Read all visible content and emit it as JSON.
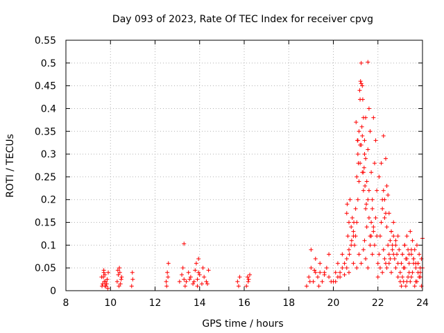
{
  "chart_data": {
    "type": "scatter",
    "title": "Day 093 of 2023, Rate Of TEC Index for receiver cpvg",
    "xlabel": "GPS time / hours",
    "ylabel": "ROTI / TECUs",
    "xlim": [
      8,
      24
    ],
    "ylim": [
      0,
      0.55
    ],
    "xticks": [
      "8",
      "10",
      "12",
      "14",
      "16",
      "18",
      "20",
      "22",
      "24"
    ],
    "yticks": [
      "0",
      "0.05",
      "0.1",
      "0.15",
      "0.2",
      "0.25",
      "0.3",
      "0.35",
      "0.4",
      "0.45",
      "0.5",
      "0.55"
    ],
    "grid": true,
    "marker": "+",
    "color": "#ff0000",
    "series": [
      {
        "x": [
          9.6,
          9.65,
          9.7,
          9.72,
          9.75,
          9.8,
          9.85,
          9.9,
          9.62,
          9.68,
          9.78,
          9.83,
          9.88,
          9.7,
          9.75,
          10.3,
          10.35,
          10.4,
          10.45,
          10.5,
          10.38,
          10.42,
          10.33,
          10.48,
          10.95,
          11.0,
          10.98,
          12.5,
          12.55,
          12.6,
          12.52,
          12.58,
          13.1,
          13.2,
          13.25,
          13.3,
          13.4,
          13.5,
          13.6,
          13.7,
          13.8,
          13.9,
          14.0,
          14.1,
          14.2,
          14.3,
          14.4,
          13.35,
          13.55,
          13.75,
          13.95,
          14.15,
          14.35,
          13.3,
          13.9,
          13.85,
          13.95,
          15.7,
          15.75,
          15.8,
          16.1,
          16.15,
          16.2,
          16.25,
          16.18,
          18.8,
          18.9,
          19.0,
          19.1,
          19.2,
          19.3,
          19.4,
          19.5,
          19.6,
          19.7,
          19.8,
          19.9,
          19.0,
          19.2,
          19.4,
          19.6,
          19.8,
          18.95,
          19.15,
          19.35,
          20.0,
          20.1,
          20.2,
          20.3,
          20.4,
          20.5,
          20.6,
          20.7,
          20.8,
          20.9,
          20.1,
          20.3,
          20.5,
          20.7,
          20.9,
          20.2,
          20.6,
          20.4,
          20.6,
          20.65,
          20.7,
          20.75,
          20.8,
          20.85,
          20.9,
          20.95,
          20.62,
          20.72,
          20.82,
          20.92,
          21.0,
          21.05,
          21.1,
          21.15,
          21.2,
          21.25,
          21.3,
          21.35,
          21.4,
          21.45,
          21.5,
          21.55,
          21.6,
          21.65,
          21.7,
          21.75,
          21.8,
          21.85,
          21.9,
          21.95,
          21.0,
          21.05,
          21.1,
          21.15,
          21.2,
          21.25,
          21.3,
          21.35,
          21.4,
          21.45,
          21.5,
          21.55,
          21.6,
          21.65,
          21.7,
          21.75,
          21.8,
          21.85,
          21.9,
          21.95,
          21.02,
          21.08,
          21.12,
          21.18,
          21.22,
          21.28,
          21.32,
          21.38,
          21.42,
          21.48,
          21.05,
          21.15,
          21.25,
          21.35,
          21.45,
          21.55,
          21.65,
          21.75,
          21.25,
          21.3,
          21.55,
          21.2,
          21.35,
          21.6,
          21.7,
          21.8,
          21.4,
          21.1,
          21.45,
          22.0,
          22.05,
          22.1,
          22.15,
          22.2,
          22.25,
          22.3,
          22.35,
          22.4,
          22.45,
          22.5,
          22.55,
          22.6,
          22.65,
          22.7,
          22.75,
          22.8,
          22.85,
          22.9,
          22.95,
          22.0,
          22.1,
          22.2,
          22.3,
          22.4,
          22.5,
          22.6,
          22.7,
          22.8,
          22.9,
          22.05,
          22.15,
          22.25,
          22.35,
          22.45,
          22.2,
          22.3,
          22.4,
          22.5,
          22.6,
          22.7,
          22.8,
          22.9,
          22.25,
          22.35,
          22.55,
          22.65,
          23.0,
          23.05,
          23.1,
          23.15,
          23.2,
          23.25,
          23.3,
          23.35,
          23.4,
          23.45,
          23.5,
          23.55,
          23.6,
          23.65,
          23.7,
          23.75,
          23.8,
          23.85,
          23.9,
          23.95,
          24.0,
          23.0,
          23.1,
          23.2,
          23.3,
          23.4,
          23.5,
          23.6,
          23.7,
          23.8,
          23.9,
          23.05,
          23.15,
          23.25,
          23.35,
          23.45,
          23.55,
          23.65,
          23.75,
          23.85,
          23.95,
          23.1,
          23.3,
          23.5,
          23.7,
          23.9,
          23.2,
          23.4,
          23.6,
          23.8,
          24.0
        ],
        "y": [
          0.03,
          0.015,
          0.04,
          0.02,
          0.035,
          0.01,
          0.025,
          0.04,
          0.01,
          0.03,
          0.02,
          0.015,
          0.005,
          0.045,
          0.01,
          0.02,
          0.035,
          0.05,
          0.015,
          0.03,
          0.01,
          0.04,
          0.045,
          0.025,
          0.01,
          0.025,
          0.04,
          0.02,
          0.04,
          0.06,
          0.01,
          0.03,
          0.02,
          0.035,
          0.05,
          0.103,
          0.02,
          0.04,
          0.03,
          0.015,
          0.045,
          0.025,
          0.035,
          0.015,
          0.03,
          0.02,
          0.045,
          0.01,
          0.025,
          0.02,
          0.07,
          0.05,
          0.015,
          0.025,
          0.01,
          0.06,
          0.04,
          0.02,
          0.01,
          0.03,
          0.01,
          0.03,
          0.025,
          0.035,
          0.02,
          0.01,
          0.03,
          0.05,
          0.02,
          0.04,
          0.03,
          0.06,
          0.02,
          0.04,
          0.05,
          0.03,
          0.02,
          0.09,
          0.07,
          0.04,
          0.035,
          0.08,
          0.02,
          0.045,
          0.01,
          0.02,
          0.04,
          0.06,
          0.03,
          0.05,
          0.035,
          0.07,
          0.04,
          0.1,
          0.06,
          0.02,
          0.04,
          0.06,
          0.09,
          0.12,
          0.03,
          0.05,
          0.08,
          0.17,
          0.12,
          0.15,
          0.2,
          0.14,
          0.16,
          0.13,
          0.1,
          0.19,
          0.08,
          0.11,
          0.15,
          0.18,
          0.25,
          0.3,
          0.35,
          0.42,
          0.5,
          0.45,
          0.38,
          0.33,
          0.29,
          0.24,
          0.31,
          0.4,
          0.35,
          0.26,
          0.2,
          0.38,
          0.28,
          0.33,
          0.22,
          0.12,
          0.15,
          0.2,
          0.24,
          0.28,
          0.32,
          0.26,
          0.22,
          0.3,
          0.18,
          0.14,
          0.2,
          0.16,
          0.12,
          0.15,
          0.18,
          0.13,
          0.1,
          0.16,
          0.12,
          0.37,
          0.33,
          0.28,
          0.44,
          0.46,
          0.36,
          0.42,
          0.27,
          0.23,
          0.19,
          0.05,
          0.08,
          0.06,
          0.09,
          0.07,
          0.05,
          0.1,
          0.08,
          0.455,
          0.34,
          0.502,
          0.32,
          0.26,
          0.22,
          0.12,
          0.14,
          0.11,
          0.33,
          0.38,
          0.06,
          0.08,
          0.12,
          0.15,
          0.18,
          0.22,
          0.2,
          0.17,
          0.14,
          0.1,
          0.08,
          0.11,
          0.13,
          0.09,
          0.12,
          0.07,
          0.1,
          0.08,
          0.06,
          0.09,
          0.03,
          0.05,
          0.04,
          0.07,
          0.05,
          0.06,
          0.04,
          0.08,
          0.05,
          0.03,
          0.25,
          0.28,
          0.34,
          0.29,
          0.21,
          0.2,
          0.16,
          0.23,
          0.17,
          0.13,
          0.15,
          0.11,
          0.12,
          0.09,
          0.06,
          0.07,
          0.1,
          0.04,
          0.06,
          0.08,
          0.05,
          0.1,
          0.07,
          0.12,
          0.09,
          0.06,
          0.13,
          0.08,
          0.11,
          0.07,
          0.09,
          0.05,
          0.1,
          0.06,
          0.08,
          0.04,
          0.07,
          0.05,
          0.02,
          0.03,
          0.05,
          0.02,
          0.04,
          0.03,
          0.06,
          0.02,
          0.04,
          0.03,
          0.01,
          0.02,
          0.01,
          0.03,
          0.02,
          0.04,
          0.01,
          0.02,
          0.03,
          0.01,
          0.08,
          0.07,
          0.09,
          0.06,
          0.05,
          0.1,
          0.08,
          0.07,
          0.06,
          0.115
        ]
      }
    ]
  }
}
